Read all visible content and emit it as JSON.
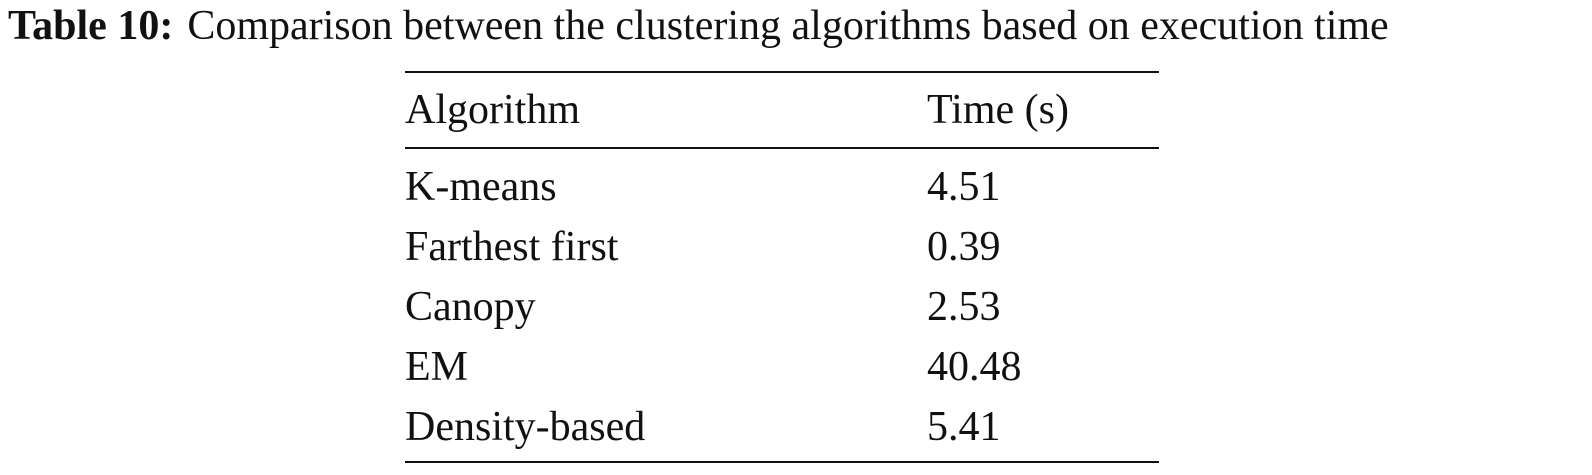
{
  "caption": {
    "label": "Table 10:",
    "text": "Comparison between the clustering algorithms based on execution time"
  },
  "table": {
    "headers": [
      "Algorithm",
      "Time (s)"
    ],
    "rows": [
      [
        "K-means",
        "4.51"
      ],
      [
        "Farthest first",
        "0.39"
      ],
      [
        "Canopy",
        "2.53"
      ],
      [
        "EM",
        "40.48"
      ],
      [
        "Density-based",
        "5.41"
      ]
    ]
  }
}
